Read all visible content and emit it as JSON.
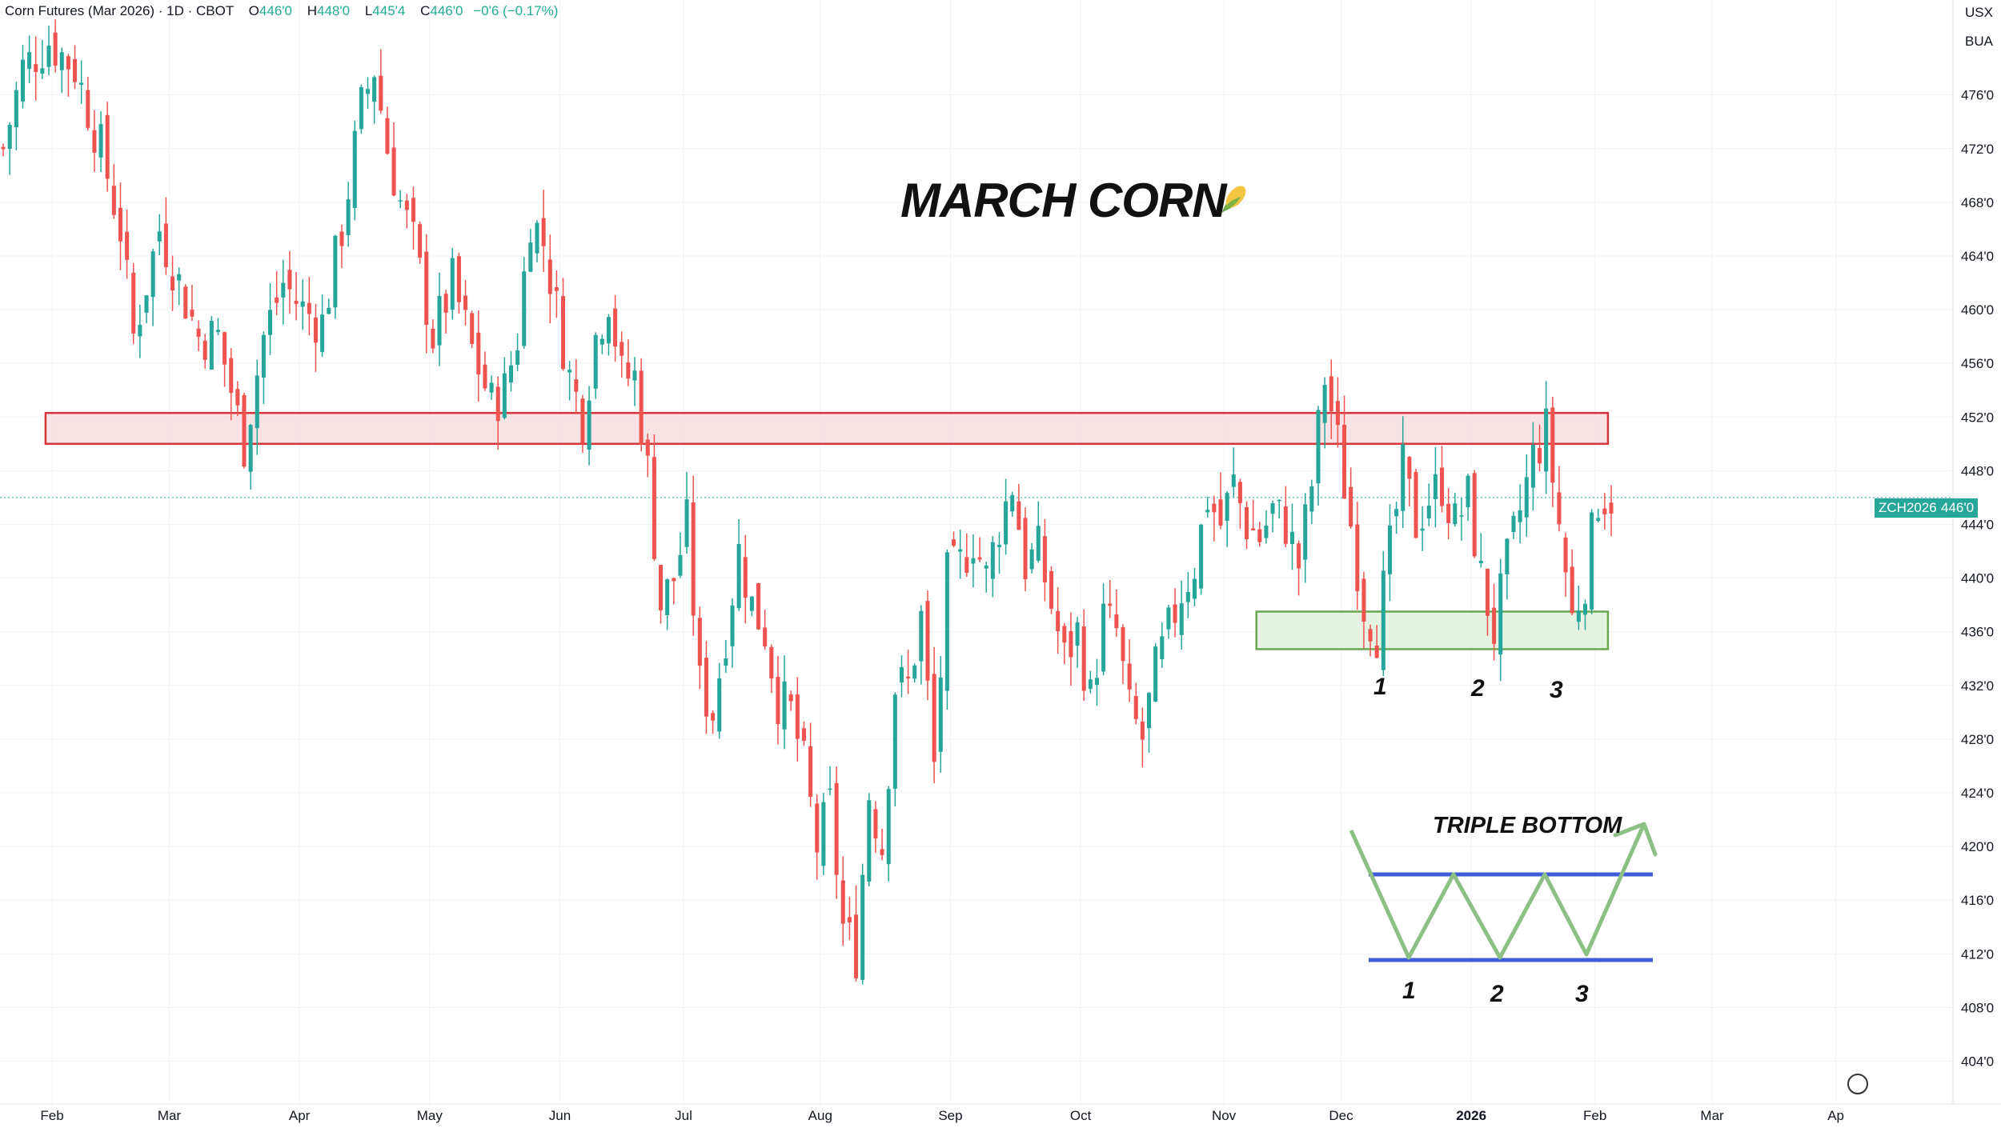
{
  "header": {
    "symbol_name": "Corn Futures (Mar 2026) · 1D · CBOT",
    "open_label": "O",
    "open": "446'0",
    "high_label": "H",
    "high": "448'0",
    "low_label": "L",
    "low": "445'4",
    "close_label": "C",
    "close": "446'0",
    "change": "−0'6 (−0.17%)"
  },
  "axis_units": {
    "currency": "USX",
    "unit": "BUA"
  },
  "annotations": {
    "title": "MARCH CORN",
    "title_icon": "corn-icon",
    "pattern_title": "TRIPLE BOTTOM",
    "bottom_labels": [
      "1",
      "2",
      "3"
    ],
    "pattern_labels": [
      "1",
      "2",
      "3"
    ]
  },
  "last_price": {
    "ticker": "ZCH2026",
    "value": "446'0"
  },
  "colors": {
    "up": "#26a69a",
    "down": "#ef5350",
    "resistance_zone": "#f8d7da",
    "support_zone": "#dcedd6",
    "pattern_line": "#8cc084",
    "neckline": "#3f5bd8"
  },
  "chart_data": {
    "type": "candlestick",
    "title": "MARCH CORN",
    "y_range": [
      402,
      482
    ],
    "y_ticks": [
      "476'0",
      "472'0",
      "468'0",
      "464'0",
      "460'0",
      "456'0",
      "452'0",
      "448'0",
      "444'0",
      "440'0",
      "436'0",
      "432'0",
      "428'0",
      "424'0",
      "420'0",
      "416'0",
      "412'0",
      "408'0",
      "404'0"
    ],
    "x_ticks": [
      "Feb",
      "Mar",
      "Apr",
      "May",
      "Jun",
      "Jul",
      "Aug",
      "Sep",
      "Oct",
      "Nov",
      "Dec",
      "2026",
      "Feb",
      "Mar",
      "Ap"
    ],
    "resistance_zone": [
      450,
      452.3
    ],
    "support_zone": [
      434.7,
      437.5
    ],
    "close_path": [
      [
        0,
        472
      ],
      [
        3,
        478
      ],
      [
        7,
        480
      ],
      [
        11,
        478
      ],
      [
        15,
        472
      ],
      [
        18,
        466
      ],
      [
        20,
        458
      ],
      [
        24,
        466
      ],
      [
        27,
        462
      ],
      [
        30,
        458
      ],
      [
        33,
        458
      ],
      [
        37,
        450
      ],
      [
        40,
        458
      ],
      [
        43,
        462
      ],
      [
        46,
        460
      ],
      [
        49,
        459
      ],
      [
        52,
        466
      ],
      [
        55,
        475
      ],
      [
        57,
        478
      ],
      [
        59,
        472
      ],
      [
        61,
        468
      ],
      [
        63,
        465
      ],
      [
        66,
        458
      ],
      [
        69,
        462
      ],
      [
        72,
        457
      ],
      [
        75,
        453
      ],
      [
        77,
        454
      ],
      [
        79,
        458
      ],
      [
        81,
        467
      ],
      [
        83,
        465
      ],
      [
        85,
        460
      ],
      [
        87,
        455
      ],
      [
        89,
        452
      ],
      [
        91,
        458
      ],
      [
        93,
        461
      ],
      [
        95,
        455
      ],
      [
        97,
        455
      ],
      [
        99,
        448
      ],
      [
        101,
        438
      ],
      [
        103,
        440
      ],
      [
        105,
        444
      ],
      [
        107,
        432
      ],
      [
        109,
        430
      ],
      [
        111,
        436
      ],
      [
        113,
        442
      ],
      [
        115,
        438
      ],
      [
        117,
        436
      ],
      [
        119,
        431
      ],
      [
        121,
        430
      ],
      [
        123,
        426
      ],
      [
        125,
        420
      ],
      [
        127,
        423
      ],
      [
        129,
        414
      ],
      [
        131,
        412
      ],
      [
        133,
        424
      ],
      [
        135,
        420
      ],
      [
        137,
        432
      ],
      [
        139,
        432
      ],
      [
        141,
        437
      ],
      [
        143,
        426
      ],
      [
        145,
        440
      ],
      [
        147,
        441
      ],
      [
        149,
        443
      ],
      [
        151,
        440
      ],
      [
        153,
        444
      ],
      [
        155,
        447
      ],
      [
        157,
        441
      ],
      [
        159,
        442
      ],
      [
        161,
        438
      ],
      [
        163,
        434
      ],
      [
        165,
        436
      ],
      [
        167,
        431
      ],
      [
        169,
        437
      ],
      [
        171,
        436
      ],
      [
        173,
        430
      ],
      [
        175,
        428
      ],
      [
        177,
        433
      ],
      [
        179,
        436
      ],
      [
        181,
        439
      ],
      [
        183,
        441
      ],
      [
        185,
        446
      ],
      [
        187,
        444
      ],
      [
        189,
        447
      ],
      [
        191,
        444
      ],
      [
        193,
        443
      ],
      [
        195,
        445
      ],
      [
        197,
        444
      ],
      [
        199,
        441
      ],
      [
        201,
        447
      ],
      [
        203,
        455
      ],
      [
        205,
        450
      ],
      [
        207,
        444
      ],
      [
        209,
        438
      ],
      [
        211,
        436
      ],
      [
        213,
        442
      ],
      [
        215,
        448
      ],
      [
        217,
        444
      ],
      [
        219,
        446
      ],
      [
        221,
        447
      ],
      [
        223,
        444
      ],
      [
        225,
        446
      ],
      [
        227,
        440
      ],
      [
        229,
        436
      ],
      [
        231,
        441
      ],
      [
        233,
        445
      ],
      [
        235,
        449
      ],
      [
        237,
        451
      ],
      [
        239,
        444
      ],
      [
        241,
        437
      ],
      [
        243,
        440
      ],
      [
        245,
        446
      ],
      [
        247,
        446
      ]
    ],
    "x_max": 300,
    "x_tick_positions": [
      8,
      26,
      46,
      66,
      86,
      105,
      126,
      146,
      166,
      188,
      206,
      226,
      245,
      263,
      282
    ],
    "overlay_lines": {
      "resistance_box_x": [
        7,
        247
      ],
      "support_box_x": [
        193,
        247
      ],
      "last_price": 446
    }
  }
}
